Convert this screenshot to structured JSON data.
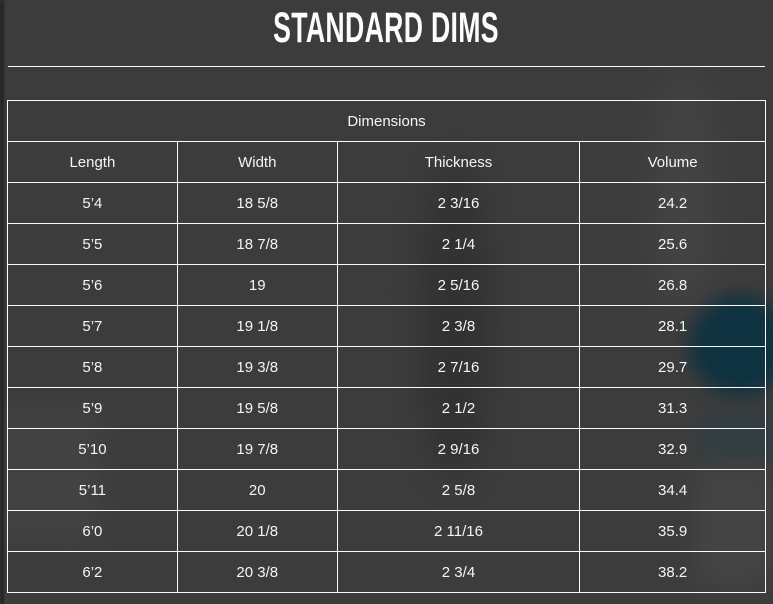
{
  "header": {
    "title": "STANDARD DIMS"
  },
  "table": {
    "caption": "Dimensions",
    "columns": [
      "Length",
      "Width",
      "Thickness",
      "Volume"
    ],
    "rows": [
      [
        "5’4",
        "18 5/8",
        "2 3/16",
        "24.2"
      ],
      [
        "5’5",
        "18 7/8",
        "2 1/4",
        "25.6"
      ],
      [
        "5’6",
        "19",
        "2 5/16",
        "26.8"
      ],
      [
        "5’7",
        "19 1/8",
        "2 3/8",
        "28.1"
      ],
      [
        "5’8",
        "19 3/8",
        "2 7/16",
        "29.7"
      ],
      [
        "5’9",
        "19 5/8",
        "2 1/2",
        "31.3"
      ],
      [
        "5’10",
        "19 7/8",
        "2 9/16",
        "32.9"
      ],
      [
        "5’11",
        "20",
        "2 5/8",
        "34.4"
      ],
      [
        "6’0",
        "20 1/8",
        "2 11/16",
        "35.9"
      ],
      [
        "6’2",
        "20 3/8",
        "2 3/4",
        "38.2"
      ]
    ]
  },
  "colors": {
    "page_background": "#3d3c3c",
    "table_border": "#fbfbfb",
    "text": "#f7f5f2",
    "accent_teal_blob": "#0d3240"
  }
}
